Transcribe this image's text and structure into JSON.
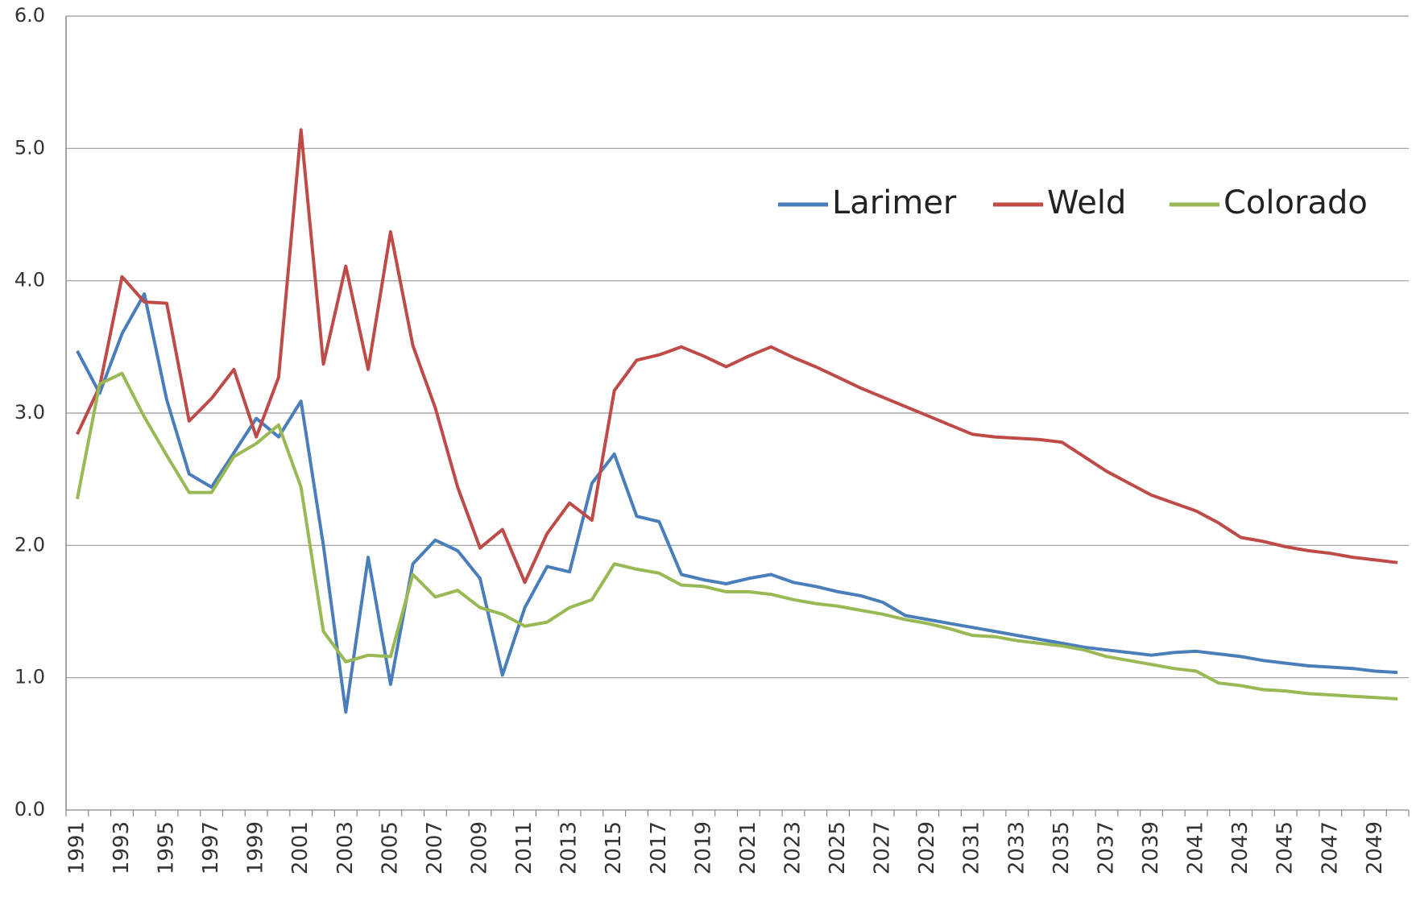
{
  "chart_data": {
    "type": "line",
    "categories": [
      "1991",
      null,
      "1993",
      null,
      "1995",
      null,
      "1997",
      null,
      "1999",
      null,
      "2001",
      null,
      "2003",
      null,
      "2005",
      null,
      "2007",
      null,
      "2009",
      null,
      "2011",
      null,
      "2013",
      null,
      "2015",
      null,
      "2017",
      null,
      "2019",
      null,
      "2021",
      null,
      "2023",
      null,
      "2025",
      null,
      "2027",
      null,
      "2029",
      null,
      "2031",
      null,
      "2033",
      null,
      "2035",
      null,
      "2037",
      null,
      "2039",
      null,
      "2041",
      null,
      "2043",
      null,
      "2045",
      null,
      "2047",
      null,
      "2049",
      null
    ],
    "series": [
      {
        "name": "Larimer",
        "color": "#4a7ebb",
        "values": [
          3.47,
          3.15,
          3.6,
          3.9,
          3.1,
          2.54,
          2.44,
          2.7,
          2.96,
          2.82,
          3.09,
          2.0,
          0.74,
          1.91,
          0.95,
          1.86,
          2.04,
          1.96,
          1.75,
          1.02,
          1.53,
          1.84,
          1.8,
          2.47,
          2.69,
          2.22,
          2.18,
          1.78,
          1.74,
          1.71,
          1.75,
          1.78,
          1.72,
          1.69,
          1.65,
          1.62,
          1.57,
          1.47,
          1.44,
          1.41,
          1.38,
          1.35,
          1.32,
          1.29,
          1.26,
          1.23,
          1.21,
          1.19,
          1.17,
          1.19,
          1.2,
          1.18,
          1.16,
          1.13,
          1.11,
          1.09,
          1.08,
          1.07,
          1.05,
          1.04
        ]
      },
      {
        "name": "Weld",
        "color": "#be4b48",
        "values": [
          2.84,
          3.2,
          4.03,
          3.84,
          3.83,
          2.94,
          3.11,
          3.33,
          2.82,
          3.27,
          5.14,
          3.37,
          4.11,
          3.33,
          4.37,
          3.51,
          3.04,
          2.44,
          1.98,
          2.12,
          1.72,
          2.09,
          2.32,
          2.19,
          3.17,
          3.4,
          3.44,
          3.5,
          3.43,
          3.35,
          3.43,
          3.5,
          3.42,
          3.35,
          3.27,
          3.19,
          3.12,
          3.05,
          2.98,
          2.91,
          2.84,
          2.82,
          2.81,
          2.8,
          2.78,
          2.67,
          2.56,
          2.47,
          2.38,
          2.32,
          2.26,
          2.17,
          2.06,
          2.03,
          1.99,
          1.96,
          1.94,
          1.91,
          1.89,
          1.87
        ]
      },
      {
        "name": "Colorado",
        "color": "#98b954",
        "values": [
          2.35,
          3.22,
          3.3,
          2.97,
          2.68,
          2.4,
          2.4,
          2.67,
          2.77,
          2.91,
          2.44,
          1.35,
          1.12,
          1.17,
          1.16,
          1.78,
          1.61,
          1.66,
          1.53,
          1.48,
          1.39,
          1.42,
          1.53,
          1.59,
          1.86,
          1.82,
          1.79,
          1.7,
          1.69,
          1.65,
          1.65,
          1.63,
          1.59,
          1.56,
          1.54,
          1.51,
          1.48,
          1.44,
          1.41,
          1.37,
          1.32,
          1.31,
          1.28,
          1.26,
          1.24,
          1.21,
          1.16,
          1.13,
          1.1,
          1.07,
          1.05,
          0.96,
          0.94,
          0.91,
          0.9,
          0.88,
          0.87,
          0.86,
          0.85,
          0.84
        ]
      }
    ],
    "ylim": [
      0,
      6
    ],
    "yticks": [
      {
        "value": 0,
        "label": "0.0"
      },
      {
        "value": 1,
        "label": "1.0"
      },
      {
        "value": 2,
        "label": "2.0"
      },
      {
        "value": 3,
        "label": "3.0"
      },
      {
        "value": 4,
        "label": "4.0"
      },
      {
        "value": 5,
        "label": "5.0"
      },
      {
        "value": 6,
        "label": "6.0"
      }
    ],
    "grid": true,
    "legend": "upper right"
  }
}
